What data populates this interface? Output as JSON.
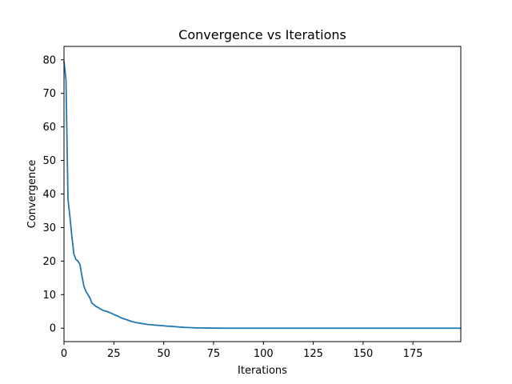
{
  "chart_data": {
    "type": "line",
    "title": "Convergence vs Iterations",
    "xlabel": "Iterations",
    "ylabel": "Convergence",
    "xlim": [
      0,
      199
    ],
    "ylim": [
      -4,
      84
    ],
    "xticks": [
      0,
      25,
      50,
      75,
      100,
      125,
      150,
      175
    ],
    "yticks": [
      0,
      10,
      20,
      30,
      40,
      50,
      60,
      70,
      80
    ],
    "grid": false,
    "series": [
      {
        "color": "#1f77b4",
        "x": [
          0,
          1,
          2,
          3,
          4,
          5,
          6,
          7,
          8,
          9,
          10,
          11,
          12,
          13,
          14,
          15,
          16,
          17,
          18,
          19,
          20,
          21,
          22,
          23,
          24,
          25,
          26,
          27,
          28,
          29,
          30,
          32,
          34,
          36,
          38,
          40,
          42,
          44,
          46,
          48,
          50,
          52,
          54,
          56,
          58,
          60,
          62,
          64,
          66,
          68,
          70,
          72,
          75,
          78,
          80,
          85,
          90,
          100,
          110,
          120,
          130,
          140,
          150,
          160,
          170,
          180,
          190,
          199
        ],
        "y": [
          79.5,
          74,
          38.5,
          33,
          27,
          22,
          20.5,
          20,
          19,
          15.5,
          12.5,
          11,
          10,
          9,
          7.5,
          7,
          6.5,
          6.2,
          5.8,
          5.5,
          5.2,
          5.1,
          4.9,
          4.6,
          4.4,
          4.1,
          3.8,
          3.6,
          3.3,
          3.0,
          2.8,
          2.4,
          2.0,
          1.7,
          1.5,
          1.3,
          1.1,
          1.0,
          0.9,
          0.8,
          0.7,
          0.6,
          0.55,
          0.45,
          0.35,
          0.25,
          0.2,
          0.15,
          0.1,
          0.08,
          0.06,
          0.04,
          0.02,
          0.01,
          0.0,
          0.0,
          0.0,
          0.0,
          0.0,
          0.0,
          0.0,
          0.0,
          0.0,
          0.0,
          0.0,
          0.0,
          0.0,
          0.0
        ]
      }
    ]
  }
}
